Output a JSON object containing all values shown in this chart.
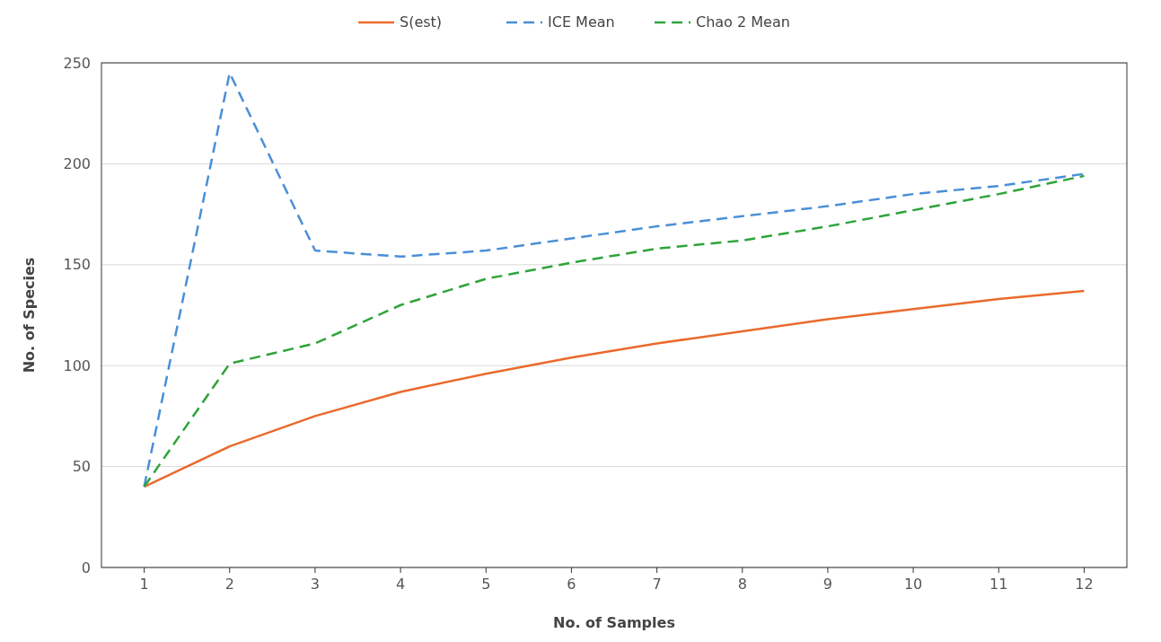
{
  "chart_data": {
    "type": "line",
    "xlabel": "No. of Samples",
    "ylabel": "No. of Species",
    "x": [
      1,
      2,
      3,
      4,
      5,
      6,
      7,
      8,
      9,
      10,
      11,
      12
    ],
    "xlim": [
      0.5,
      12.5
    ],
    "xticks": [
      1,
      2,
      3,
      4,
      5,
      6,
      7,
      8,
      9,
      10,
      11,
      12
    ],
    "series": [
      {
        "name": "S(est)",
        "color": "#ea6a2c",
        "line_style": "solid",
        "values": [
          40,
          60,
          75,
          87,
          96,
          104,
          111,
          117,
          123,
          128,
          133,
          137
        ]
      },
      {
        "name": "ICE Mean",
        "color": "#4a8fd6",
        "line_style": "dashed",
        "values": [
          40,
          245,
          157,
          154,
          157,
          163,
          169,
          174,
          179,
          185,
          189,
          195
        ]
      },
      {
        "name": "Chao 2 Mean",
        "color": "#2ea43a",
        "line_style": "dashed",
        "values": [
          40,
          101,
          111,
          130,
          143,
          151,
          158,
          162,
          169,
          177,
          185,
          194
        ]
      }
    ],
    "ylim": [
      0,
      250
    ],
    "yticks": [
      0,
      50,
      100,
      150,
      200,
      250
    ],
    "grid": "y",
    "legend": "top",
    "marker": "none"
  }
}
